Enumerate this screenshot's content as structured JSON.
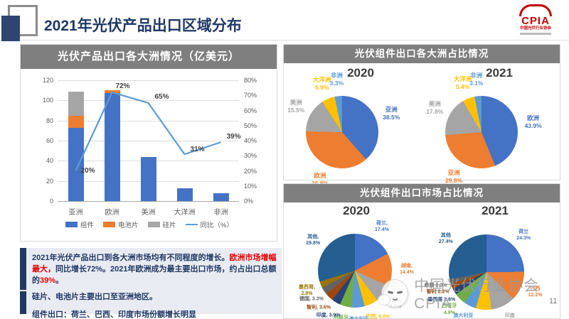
{
  "page": {
    "title": "2021年光伏产品出口区域分布",
    "page_number": "11",
    "watermark_text": "中国光伏行业协会CPIA"
  },
  "logo": {
    "text": "CPIA",
    "subtext": "中国光伏行业协会"
  },
  "panels": {
    "combo": {
      "title": "光伏产品出口各大洲情况（亿美元）"
    },
    "pies_continent": {
      "title": "光伏组件出口各大洲占比情况"
    },
    "pies_market": {
      "title": "光伏组件出口市场占比情况"
    }
  },
  "summary": {
    "p1": [
      {
        "text": "2021年光伏产品出口到各大洲市场均有不同程度的增长。",
        "color": "navy"
      },
      {
        "text": "欧洲市场增幅最大，",
        "color": "red"
      },
      {
        "text": "同比增长72%。2021年欧洲成为最主要出口市场，约占出口总额的",
        "color": "navy"
      },
      {
        "text": "39%",
        "color": "red"
      },
      {
        "text": "。",
        "color": "navy"
      }
    ],
    "p2": "硅片、电池片主要出口至亚洲地区。",
    "p3": "组件出口：荷兰、巴西、印度市场份额增长明显"
  },
  "colors": {
    "blue": "#4472C4",
    "orange": "#ED7D31",
    "gray": "#A5A5A5",
    "yellow": "#FFC000",
    "light_blue": "#5B9BD5",
    "green": "#70AD47",
    "dark_blue": "#264478",
    "dark_orange": "#9E480E",
    "dark_gray": "#636363",
    "dark_yellow": "#997300",
    "other_blue": "#255E91",
    "navy": "#1F3864",
    "title_bar": "#7F7F7F",
    "red": "#E60000"
  },
  "chart_data": [
    {
      "type": "bar",
      "title": "光伏产品出口各大洲情况（亿美元）",
      "categories": [
        "亚洲",
        "欧洲",
        "美洲",
        "大洋洲",
        "非洲"
      ],
      "series": [
        {
          "name": "组件",
          "type": "bar",
          "color": "#4472C4",
          "values": [
            73,
            107,
            44,
            13,
            8
          ]
        },
        {
          "name": "电池片",
          "type": "bar",
          "color": "#ED7D31",
          "values": [
            12,
            3,
            0,
            0,
            0
          ]
        },
        {
          "name": "硅片",
          "type": "bar",
          "color": "#A5A5A5",
          "values": [
            24,
            0,
            0,
            0,
            0
          ]
        },
        {
          "name": "同比（%）",
          "type": "line",
          "color": "#5B9BD5",
          "axis": "right",
          "values": [
            20,
            72,
            65,
            31,
            39
          ],
          "labels": [
            "20%",
            "72%",
            "65%",
            "31%",
            "39%"
          ],
          "label_offsets": [
            [
              7,
              -6
            ],
            [
              5,
              -14
            ],
            [
              9,
              -14
            ],
            [
              8,
              -12
            ],
            [
              8,
              -13
            ]
          ]
        }
      ],
      "left_axis": {
        "min": 0,
        "max": 120,
        "step": 20,
        "ticks": [
          "0",
          "20",
          "40",
          "60",
          "80",
          "100",
          "120"
        ]
      },
      "right_axis": {
        "min": 0,
        "max": 80,
        "step": 10,
        "ticks": [
          "0%",
          "10%",
          "20%",
          "30%",
          "40%",
          "50%",
          "60%",
          "70%",
          "80%"
        ]
      },
      "grid": true,
      "legend_position": "bottom"
    },
    {
      "type": "pie",
      "title": "2020",
      "slices": [
        {
          "name": "亚洲",
          "value": 38.5,
          "label": "亚洲\n38.5%",
          "color": "#4472C4"
        },
        {
          "name": "欧洲",
          "value": 36.8,
          "label": "欧洲\n36.8%",
          "color": "#ED7D31"
        },
        {
          "name": "美洲",
          "value": 15.5,
          "label": "美洲\n15.5%",
          "color": "#A5A5A5"
        },
        {
          "name": "大洋洲",
          "value": 5.9,
          "label": "大洋洲\n5.9%",
          "color": "#FFC000"
        },
        {
          "name": "非洲",
          "value": 3.3,
          "label": "非洲\n3.3%",
          "color": "#5B9BD5"
        }
      ]
    },
    {
      "type": "pie",
      "title": "2021",
      "slices": [
        {
          "name": "欧洲",
          "value": 43.9,
          "label": "欧洲\n43.9%",
          "color": "#4472C4"
        },
        {
          "name": "亚洲",
          "value": 29.8,
          "label": "亚洲\n29.8%",
          "color": "#ED7D31"
        },
        {
          "name": "美洲",
          "value": 17.8,
          "label": "美洲\n17.8%",
          "color": "#A5A5A5"
        },
        {
          "name": "大洋洲",
          "value": 5.4,
          "label": "大洋洲\n5.4%",
          "color": "#FFC000"
        },
        {
          "name": "非洲",
          "value": 3.1,
          "label": "非洲\n3.1%",
          "color": "#5B9BD5"
        }
      ]
    },
    {
      "type": "pie",
      "title": "2020",
      "slices": [
        {
          "name": "荷兰",
          "value": 17.4,
          "label": "荷兰,\n17.4%",
          "color": "#4472C4"
        },
        {
          "name": "越南",
          "value": 14.4,
          "label": "越南,\n14.4%",
          "color": "#ED7D31"
        },
        {
          "name": "日本",
          "value": 7.9,
          "label": "日本,\n7.9%",
          "color": "#A5A5A5"
        },
        {
          "name": "巴西",
          "value": 6.0,
          "label": "巴西, 6.0%",
          "color": "#FFC000"
        },
        {
          "name": "澳大利亚",
          "value": 5.8,
          "label": "澳大利亚,\n5.8%",
          "color": "#5B9BD5"
        },
        {
          "name": "西班牙",
          "value": 5.1,
          "label": "西班牙,\n5.1%",
          "color": "#70AD47"
        },
        {
          "name": "印度",
          "value": 3.9,
          "label": "印度, 3.9%",
          "color": "#264478"
        },
        {
          "name": "智利",
          "value": 3.6,
          "label": "智利, 3.6%",
          "color": "#9E480E"
        },
        {
          "name": "德国",
          "value": 3.3,
          "label": "德国, 3.3%",
          "color": "#636363"
        },
        {
          "name": "墨西哥",
          "value": 2.8,
          "label": "墨西哥,\n2.8%",
          "color": "#997300"
        },
        {
          "name": "其他",
          "value": 29.8,
          "label": "其他,\n29.8%",
          "color": "#255E91"
        }
      ]
    },
    {
      "type": "pie",
      "title": "2021",
      "slices": [
        {
          "name": "荷兰",
          "value": 24.3,
          "label": "荷兰\n24.3%",
          "color": "#4472C4"
        },
        {
          "name": "巴西",
          "value": 12.2,
          "label": "巴西\n12.2%",
          "color": "#ED7D31"
        },
        {
          "name": "印度",
          "value": 10.3,
          "label": "印度\n10.3%",
          "color": "#A5A5A5"
        },
        {
          "name": "日本",
          "value": 6.5,
          "label": "日本 6.5%",
          "color": "#FFC000"
        },
        {
          "name": "澳大利亚",
          "value": 5.2,
          "label": "澳大利亚\n5.2%",
          "color": "#5B9BD5"
        },
        {
          "name": "西班牙",
          "value": 4.9,
          "label": "西班牙\n4.9%",
          "color": "#70AD47"
        },
        {
          "name": "墨西哥",
          "value": 2.6,
          "label": "墨西哥 2.6%",
          "color": "#264478"
        },
        {
          "name": "智利",
          "value": 2.2,
          "label": "智利 2.2%",
          "color": "#9E480E"
        },
        {
          "name": "希腊",
          "value": 2.0,
          "label": "希腊 2.0%",
          "color": "#636363"
        },
        {
          "name": "其他",
          "value": 27.4,
          "label": "其他\n27.4%",
          "color": "#255E91"
        }
      ]
    }
  ]
}
